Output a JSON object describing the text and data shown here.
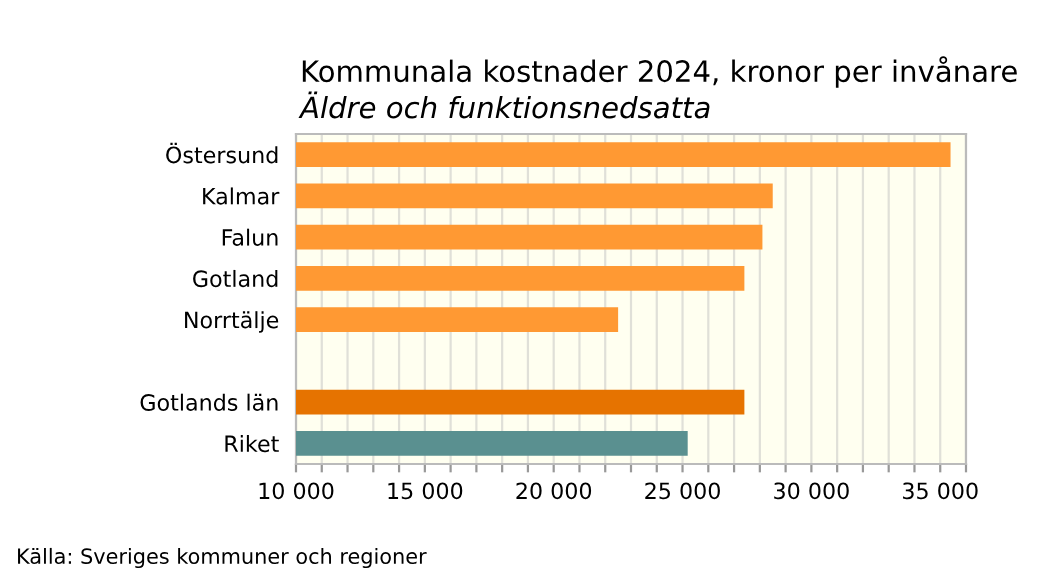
{
  "chart_data": {
    "type": "bar",
    "orientation": "horizontal",
    "title": "Kommunala kostnader 2024, kronor per invånare",
    "subtitle": "Äldre och funktionsnedsatta",
    "categories": [
      "Östersund",
      "Kalmar",
      "Falun",
      "Gotland",
      "Norrtälje",
      null,
      "Gotlands län",
      "Riket"
    ],
    "values": [
      35400,
      28500,
      28100,
      27400,
      22500,
      null,
      27400,
      25200
    ],
    "colors": [
      "#ff9933",
      "#ff9933",
      "#ff9933",
      "#ff9933",
      "#ff9933",
      "#ff9933",
      "#e67300",
      "#5a9090"
    ],
    "xlim": [
      10000,
      36000
    ],
    "xticks": [
      {
        "value": 10000,
        "label": "10 000"
      },
      {
        "value": 11000,
        "label": null
      },
      {
        "value": 12000,
        "label": null
      },
      {
        "value": 13000,
        "label": null
      },
      {
        "value": 14000,
        "label": null
      },
      {
        "value": 15000,
        "label": "15 000"
      },
      {
        "value": 16000,
        "label": null
      },
      {
        "value": 17000,
        "label": null
      },
      {
        "value": 18000,
        "label": null
      },
      {
        "value": 19000,
        "label": null
      },
      {
        "value": 20000,
        "label": "20 000"
      },
      {
        "value": 21000,
        "label": null
      },
      {
        "value": 22000,
        "label": null
      },
      {
        "value": 23000,
        "label": null
      },
      {
        "value": 24000,
        "label": null
      },
      {
        "value": 25000,
        "label": "25 000"
      },
      {
        "value": 26000,
        "label": null
      },
      {
        "value": 27000,
        "label": null
      },
      {
        "value": 28000,
        "label": null
      },
      {
        "value": 29000,
        "label": null
      },
      {
        "value": 30000,
        "label": "30 000"
      },
      {
        "value": 31000,
        "label": null
      },
      {
        "value": 32000,
        "label": null
      },
      {
        "value": 33000,
        "label": null
      },
      {
        "value": 34000,
        "label": null
      },
      {
        "value": 35000,
        "label": "35 000"
      },
      {
        "value": 36000,
        "label": null
      }
    ],
    "grid": "x",
    "annotations": [
      "Källa: Sveriges kommuner och regioner"
    ]
  }
}
